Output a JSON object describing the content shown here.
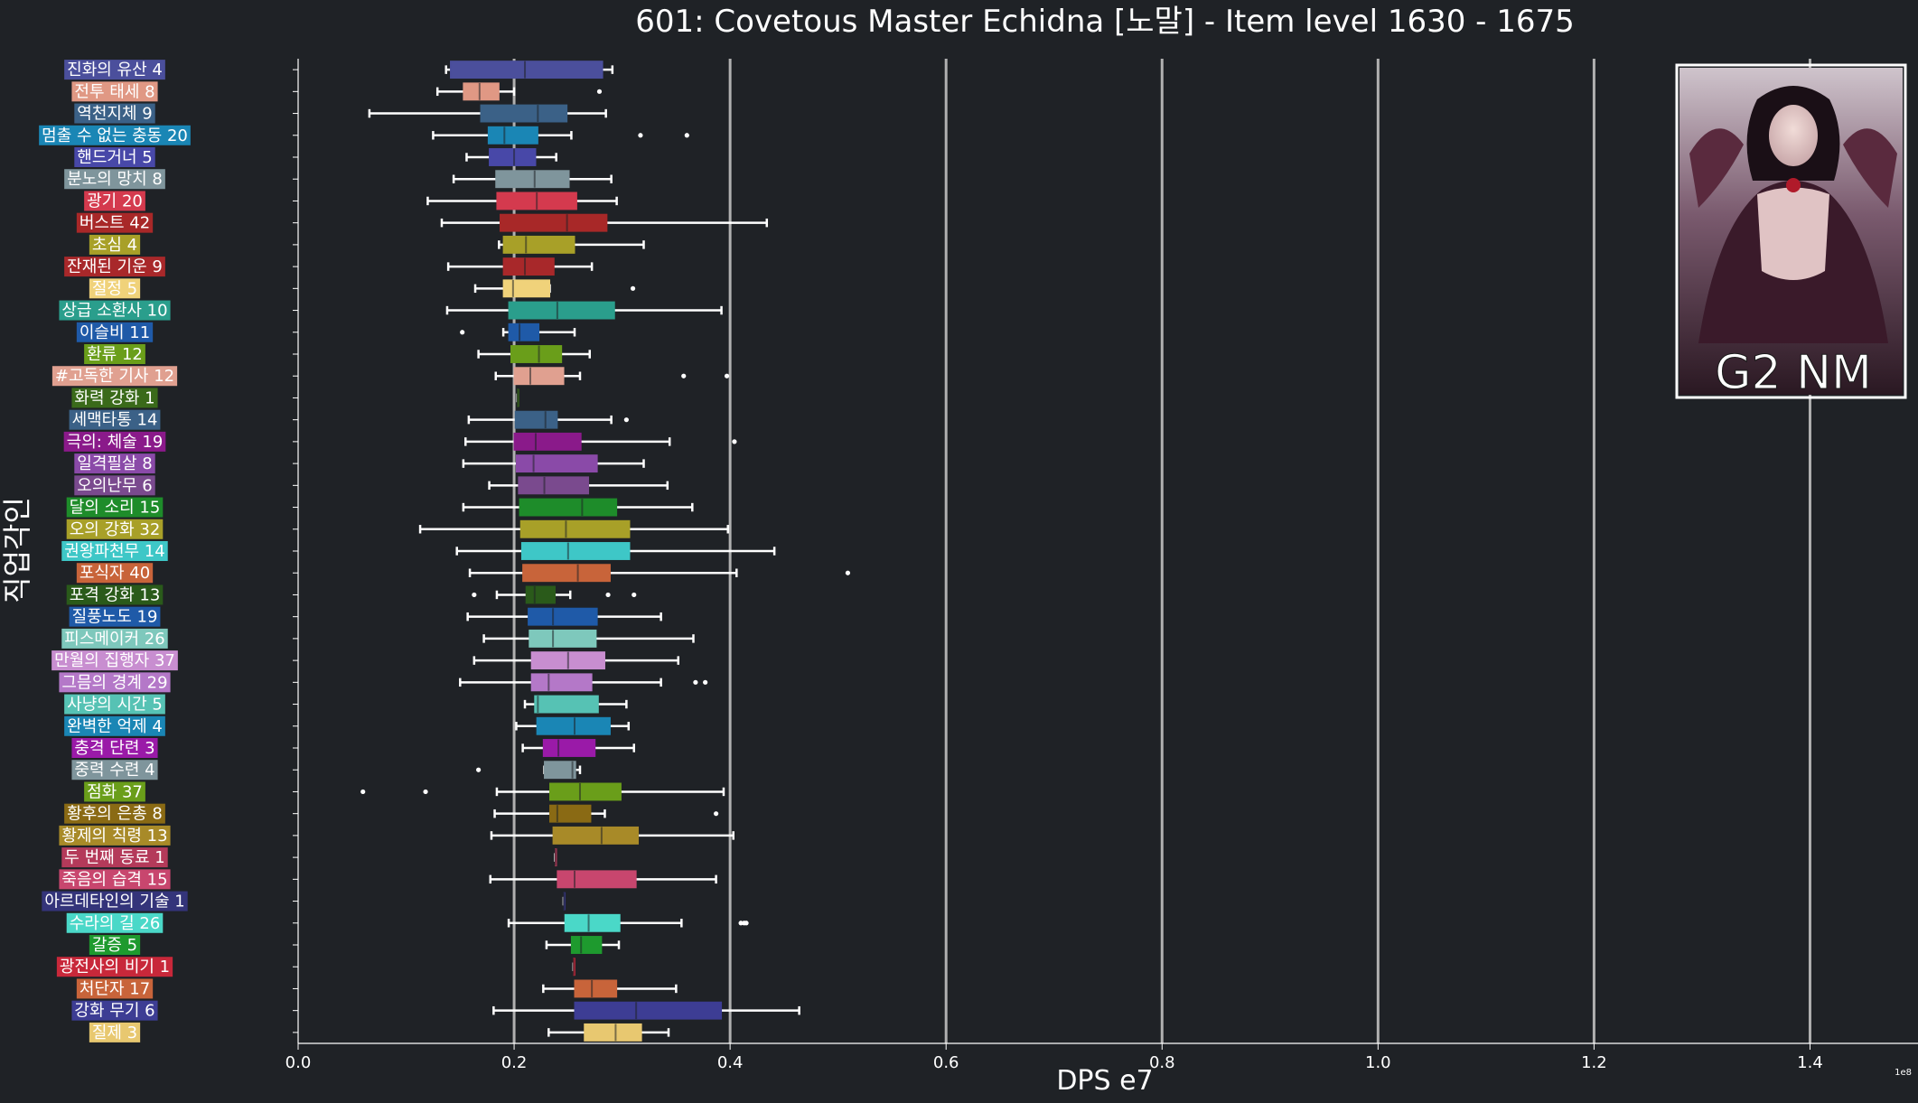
{
  "chart_data": {
    "type": "boxplot",
    "orientation": "horizontal",
    "title": "601: Covetous Master Echidna [노말] - Item level 1630 - 1675",
    "xlabel": "DPS e7",
    "ylabel": "직업각인",
    "x_offset_text": "1e8",
    "xlim": [
      0.0,
      1.5
    ],
    "x_ticks": [
      0.0,
      0.2,
      0.4,
      0.6,
      0.8,
      1.0,
      1.2,
      1.4
    ],
    "x_tick_labels": [
      "0.0",
      "0.2",
      "0.4",
      "0.6",
      "0.8",
      "1.0",
      "1.2",
      "1.4"
    ],
    "grid": "vertical lines at major ticks",
    "badge_text": "G2 NM",
    "categories": [
      {
        "label": "진화의 유산 4",
        "color": "#4b4f9c",
        "whisker_low": 0.137,
        "q1": 0.141,
        "median": 0.21,
        "q3": 0.282,
        "whisker_high": 0.291,
        "outliers": []
      },
      {
        "label": "전투 태세 8",
        "color": "#e09884",
        "whisker_low": 0.129,
        "q1": 0.153,
        "median": 0.168,
        "q3": 0.186,
        "whisker_high": 0.2,
        "outliers": [
          0.279
        ]
      },
      {
        "label": "역천지체 9",
        "color": "#3b6187",
        "whisker_low": 0.066,
        "q1": 0.169,
        "median": 0.222,
        "q3": 0.249,
        "whisker_high": 0.285,
        "outliers": []
      },
      {
        "label": "멈출 수 없는 충동 20",
        "color": "#1a86b5",
        "whisker_low": 0.125,
        "q1": 0.176,
        "median": 0.191,
        "q3": 0.222,
        "whisker_high": 0.253,
        "outliers": [
          0.317,
          0.36
        ]
      },
      {
        "label": "핸드거너 5",
        "color": "#4848a8",
        "whisker_low": 0.156,
        "q1": 0.177,
        "median": 0.2,
        "q3": 0.22,
        "whisker_high": 0.239,
        "outliers": []
      },
      {
        "label": "분노의 망치 8",
        "color": "#7f959c",
        "whisker_low": 0.144,
        "q1": 0.183,
        "median": 0.219,
        "q3": 0.251,
        "whisker_high": 0.29,
        "outliers": []
      },
      {
        "label": "광기 20",
        "color": "#d43a4e",
        "whisker_low": 0.12,
        "q1": 0.184,
        "median": 0.221,
        "q3": 0.258,
        "whisker_high": 0.295,
        "outliers": []
      },
      {
        "label": "버스트 42",
        "color": "#a82828",
        "whisker_low": 0.133,
        "q1": 0.187,
        "median": 0.249,
        "q3": 0.286,
        "whisker_high": 0.434,
        "outliers": []
      },
      {
        "label": "초심 4",
        "color": "#a8a028",
        "whisker_low": 0.186,
        "q1": 0.19,
        "median": 0.211,
        "q3": 0.256,
        "whisker_high": 0.32,
        "outliers": []
      },
      {
        "label": "잔재된 기운 9",
        "color": "#a8282a",
        "whisker_low": 0.139,
        "q1": 0.19,
        "median": 0.21,
        "q3": 0.237,
        "whisker_high": 0.272,
        "outliers": []
      },
      {
        "label": "절정 5",
        "color": "#f0d27a",
        "whisker_low": 0.164,
        "q1": 0.19,
        "median": 0.199,
        "q3": 0.233,
        "whisker_high": 0.233,
        "outliers": [
          0.31
        ]
      },
      {
        "label": "상급 소환사 10",
        "color": "#2a9e8c",
        "whisker_low": 0.138,
        "q1": 0.195,
        "median": 0.24,
        "q3": 0.293,
        "whisker_high": 0.392,
        "outliers": []
      },
      {
        "label": "이슬비 11",
        "color": "#1f5aa8",
        "whisker_low": 0.19,
        "q1": 0.195,
        "median": 0.205,
        "q3": 0.223,
        "whisker_high": 0.256,
        "outliers": [
          0.152
        ]
      },
      {
        "label": "환류 12",
        "color": "#6a9e1a",
        "whisker_low": 0.167,
        "q1": 0.197,
        "median": 0.223,
        "q3": 0.244,
        "whisker_high": 0.27,
        "outliers": []
      },
      {
        "label": "#고독한 기사 12",
        "color": "#e0a090",
        "whisker_low": 0.183,
        "q1": 0.2,
        "median": 0.215,
        "q3": 0.246,
        "whisker_high": 0.261,
        "outliers": [
          0.357,
          0.397
        ]
      },
      {
        "label": "화력 강화 1",
        "color": "#3a6a1a",
        "whisker_low": 0.203,
        "q1": 0.203,
        "median": 0.203,
        "q3": 0.203,
        "whisker_high": 0.203,
        "outliers": []
      },
      {
        "label": "세맥타통 14",
        "color": "#3b6187",
        "whisker_low": 0.158,
        "q1": 0.201,
        "median": 0.229,
        "q3": 0.24,
        "whisker_high": 0.29,
        "outliers": [
          0.304
        ]
      },
      {
        "label": "극의: 체술 19",
        "color": "#8a1a8a",
        "whisker_low": 0.155,
        "q1": 0.2,
        "median": 0.22,
        "q3": 0.262,
        "whisker_high": 0.344,
        "outliers": [
          0.404
        ]
      },
      {
        "label": "일격필살 8",
        "color": "#8a4aa8",
        "whisker_low": 0.153,
        "q1": 0.202,
        "median": 0.218,
        "q3": 0.277,
        "whisker_high": 0.32,
        "outliers": []
      },
      {
        "label": "오의난무 6",
        "color": "#7a4a8e",
        "whisker_low": 0.177,
        "q1": 0.204,
        "median": 0.228,
        "q3": 0.269,
        "whisker_high": 0.342,
        "outliers": []
      },
      {
        "label": "달의 소리 15",
        "color": "#1e8c2a",
        "whisker_low": 0.153,
        "q1": 0.205,
        "median": 0.263,
        "q3": 0.295,
        "whisker_high": 0.365,
        "outliers": []
      },
      {
        "label": "오의 강화 32",
        "color": "#a8a028",
        "whisker_low": 0.113,
        "q1": 0.206,
        "median": 0.248,
        "q3": 0.307,
        "whisker_high": 0.398,
        "outliers": []
      },
      {
        "label": "권왕파천무 14",
        "color": "#3ec7c7",
        "whisker_low": 0.147,
        "q1": 0.207,
        "median": 0.25,
        "q3": 0.307,
        "whisker_high": 0.441,
        "outliers": []
      },
      {
        "label": "포식자 40",
        "color": "#c8643a",
        "whisker_low": 0.159,
        "q1": 0.208,
        "median": 0.259,
        "q3": 0.289,
        "whisker_high": 0.406,
        "outliers": [
          0.509
        ]
      },
      {
        "label": "포격 강화 13",
        "color": "#2a5a1a",
        "whisker_low": 0.184,
        "q1": 0.211,
        "median": 0.219,
        "q3": 0.238,
        "whisker_high": 0.252,
        "outliers": [
          0.163,
          0.287,
          0.311
        ]
      },
      {
        "label": "질풍노도 19",
        "color": "#1f5aa8",
        "whisker_low": 0.157,
        "q1": 0.213,
        "median": 0.236,
        "q3": 0.277,
        "whisker_high": 0.336,
        "outliers": []
      },
      {
        "label": "피스메이커 26",
        "color": "#7ec8bc",
        "whisker_low": 0.172,
        "q1": 0.214,
        "median": 0.236,
        "q3": 0.276,
        "whisker_high": 0.366,
        "outliers": []
      },
      {
        "label": "만월의 집행자 37",
        "color": "#c88ed0",
        "whisker_low": 0.163,
        "q1": 0.216,
        "median": 0.25,
        "q3": 0.284,
        "whisker_high": 0.352,
        "outliers": []
      },
      {
        "label": "그믐의 경계 29",
        "color": "#b478c8",
        "whisker_low": 0.15,
        "q1": 0.216,
        "median": 0.232,
        "q3": 0.272,
        "whisker_high": 0.336,
        "outliers": [
          0.368,
          0.377
        ]
      },
      {
        "label": "사냥의 시간 5",
        "color": "#56c2b4",
        "whisker_low": 0.21,
        "q1": 0.219,
        "median": 0.222,
        "q3": 0.278,
        "whisker_high": 0.304,
        "outliers": []
      },
      {
        "label": "완벽한 억제 4",
        "color": "#1a86b5",
        "whisker_low": 0.202,
        "q1": 0.221,
        "median": 0.256,
        "q3": 0.289,
        "whisker_high": 0.306,
        "outliers": []
      },
      {
        "label": "충격 단련 3",
        "color": "#9a1aa8",
        "whisker_low": 0.208,
        "q1": 0.227,
        "median": 0.241,
        "q3": 0.275,
        "whisker_high": 0.311,
        "outliers": []
      },
      {
        "label": "중력 수련 4",
        "color": "#7f959c",
        "whisker_low": 0.228,
        "q1": 0.228,
        "median": 0.254,
        "q3": 0.257,
        "whisker_high": 0.261,
        "outliers": [
          0.167
        ]
      },
      {
        "label": "점화 37",
        "color": "#6a9e1a",
        "whisker_low": 0.184,
        "q1": 0.233,
        "median": 0.261,
        "q3": 0.299,
        "whisker_high": 0.394,
        "outliers": [
          0.06,
          0.118
        ]
      },
      {
        "label": "황후의 은총 8",
        "color": "#8a6a14",
        "whisker_low": 0.182,
        "q1": 0.233,
        "median": 0.24,
        "q3": 0.271,
        "whisker_high": 0.284,
        "outliers": [
          0.387
        ]
      },
      {
        "label": "황제의 칙령 13",
        "color": "#a88a28",
        "whisker_low": 0.179,
        "q1": 0.236,
        "median": 0.281,
        "q3": 0.315,
        "whisker_high": 0.403,
        "outliers": []
      },
      {
        "label": "두 번째 동료 1",
        "color": "#b43a5a",
        "whisker_low": 0.238,
        "q1": 0.238,
        "median": 0.238,
        "q3": 0.238,
        "whisker_high": 0.238,
        "outliers": []
      },
      {
        "label": "죽음의 습격 15",
        "color": "#c8466e",
        "whisker_low": 0.178,
        "q1": 0.24,
        "median": 0.256,
        "q3": 0.313,
        "whisker_high": 0.387,
        "outliers": []
      },
      {
        "label": "아르데타인의 기술 1",
        "color": "#34347a",
        "whisker_low": 0.246,
        "q1": 0.246,
        "median": 0.246,
        "q3": 0.246,
        "whisker_high": 0.246,
        "outliers": []
      },
      {
        "label": "수라의 길 26",
        "color": "#4ad8c8",
        "whisker_low": 0.195,
        "q1": 0.247,
        "median": 0.269,
        "q3": 0.298,
        "whisker_high": 0.355,
        "outliers": [
          0.41,
          0.413,
          0.415
        ]
      },
      {
        "label": "갈증 5",
        "color": "#1e9a2e",
        "whisker_low": 0.23,
        "q1": 0.253,
        "median": 0.262,
        "q3": 0.281,
        "whisker_high": 0.297,
        "outliers": []
      },
      {
        "label": "광전사의 비기 1",
        "color": "#c8283a",
        "whisker_low": 0.255,
        "q1": 0.255,
        "median": 0.255,
        "q3": 0.255,
        "whisker_high": 0.255,
        "outliers": []
      },
      {
        "label": "처단자 17",
        "color": "#c8643a",
        "whisker_low": 0.227,
        "q1": 0.256,
        "median": 0.272,
        "q3": 0.295,
        "whisker_high": 0.35,
        "outliers": []
      },
      {
        "label": "강화 무기 6",
        "color": "#3d3d94",
        "whisker_low": 0.181,
        "q1": 0.256,
        "median": 0.313,
        "q3": 0.392,
        "whisker_high": 0.464,
        "outliers": []
      },
      {
        "label": "질제 3",
        "color": "#e8c870",
        "whisker_low": 0.232,
        "q1": 0.265,
        "median": 0.294,
        "q3": 0.318,
        "whisker_high": 0.343,
        "outliers": []
      }
    ]
  },
  "colors": {
    "background": "#1f2226",
    "axes": "#ffffff",
    "grid": "#b0b0b0",
    "whisker": "#ffffff"
  }
}
